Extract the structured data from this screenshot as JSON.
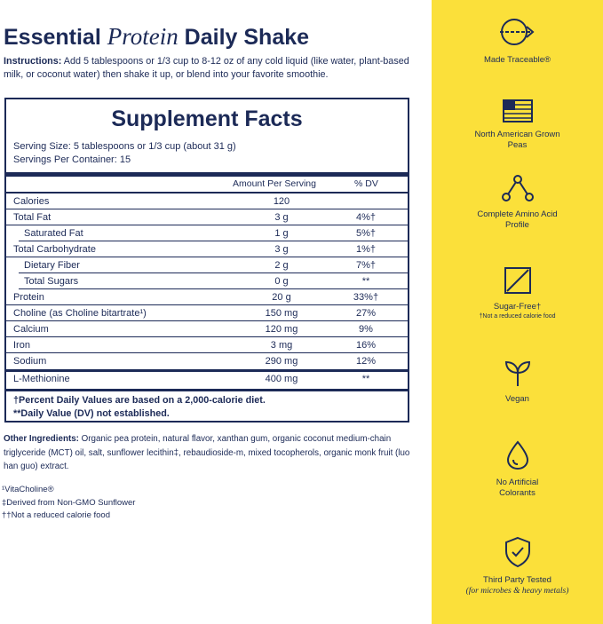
{
  "header": {
    "title_a": "Essential ",
    "title_b": "Protein",
    "title_c": " Daily Shake",
    "instructions_label": "Instructions:",
    "instructions_text": " Add 5 tablespoons or 1/3 cup to 8-12 oz of any cold liquid (like water, plant-based milk, or coconut water) then shake it up, or blend into your favorite smoothie."
  },
  "facts": {
    "title": "Supplement Facts",
    "serving_size": "Serving Size: 5 tablespoons or 1/3 cup (about 31 g)",
    "servings_per_container": "Servings Per Container: 15",
    "col_amount": "Amount Per Serving",
    "col_dv": "% DV",
    "rows": [
      {
        "name": "Calories",
        "amount": "120",
        "dv": ""
      },
      {
        "name": "Total Fat",
        "amount": "3 g",
        "dv": "4%†"
      },
      {
        "name": "Saturated Fat",
        "amount": "1 g",
        "dv": "5%†"
      },
      {
        "name": "Total Carbohydrate",
        "amount": "3 g",
        "dv": "1%†"
      },
      {
        "name": "Dietary Fiber",
        "amount": "2 g",
        "dv": "7%†"
      },
      {
        "name": "Total Sugars",
        "amount": "0 g",
        "dv": "**"
      },
      {
        "name": "Protein",
        "amount": "20 g",
        "dv": "33%†"
      },
      {
        "name": "Choline (as Choline bitartrate¹)",
        "amount": "150 mg",
        "dv": "27%"
      },
      {
        "name": "Calcium",
        "amount": "120 mg",
        "dv": "9%"
      },
      {
        "name": "Iron",
        "amount": "3 mg",
        "dv": "16%"
      },
      {
        "name": "Sodium",
        "amount": "290 mg",
        "dv": "12%"
      },
      {
        "name": "L-Methionine",
        "amount": "400 mg",
        "dv": "**"
      }
    ],
    "footnote_1": "†Percent Daily Values are based on a 2,000-calorie diet.",
    "footnote_2": "**Daily Value (DV) not established."
  },
  "other": {
    "label": "Other Ingredients:",
    "text": " Organic pea protein, natural flavor, xanthan gum, organic coconut medium-chain triglyceride (MCT) oil, salt, sunflower lecithin‡, rebaudioside-m, mixed tocopherols, organic monk fruit (luo han guo) extract."
  },
  "notes": [
    "¹VitaCholine®",
    "‡Derived from Non-GMO Sunflower",
    "††Not a reduced calorie food"
  ],
  "features": [
    {
      "icon": "traceable-arrow-icon",
      "label": "Made Traceable®"
    },
    {
      "icon": "us-flag-icon",
      "label": "North American Grown Peas"
    },
    {
      "icon": "molecule-icon",
      "label": "Complete Amino Acid Profile"
    },
    {
      "icon": "sugar-free-icon",
      "label": "Sugar-Free†",
      "sub": "†Not a reduced calorie food"
    },
    {
      "icon": "sprout-icon",
      "label": "Vegan"
    },
    {
      "icon": "droplet-icon",
      "label": "No Artificial Colorants"
    },
    {
      "icon": "shield-check-icon",
      "label": "Third Party Tested",
      "sub": "(for microbes & heavy metals)"
    }
  ],
  "colors": {
    "navy": "#1c2a57",
    "yellow": "#fbe03a"
  }
}
